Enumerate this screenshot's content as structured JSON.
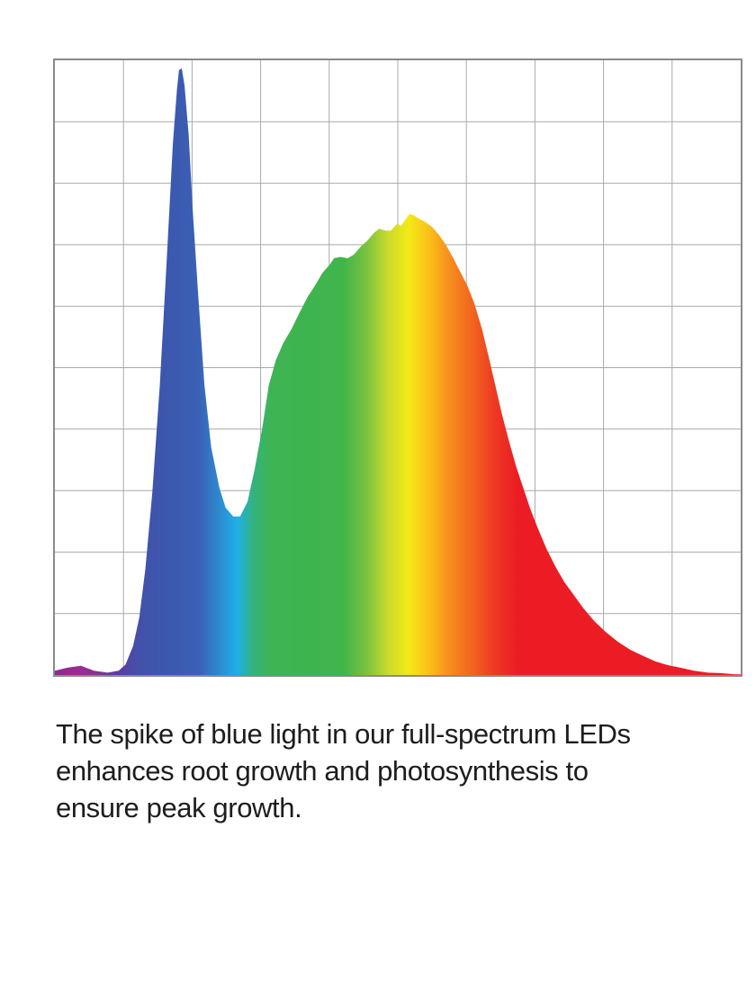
{
  "chart": {
    "border_color": "#8a8a8a",
    "grid_color": "#a9a9a9",
    "background": "#ffffff"
  },
  "chart_data": {
    "type": "area",
    "title": "",
    "xlabel": "",
    "ylabel": "",
    "legend": "none",
    "grid": "on",
    "grid_columns": 10,
    "grid_rows": 10,
    "x_range_norm": [
      0,
      1
    ],
    "y_range_norm": [
      0,
      1
    ],
    "description": "Full-spectrum LED relative intensity across the visible spectrum (violet to red), with a sharp blue spike and a broad green-to-red hump",
    "series": [
      {
        "name": "full-spectrum-led-intensity",
        "points": [
          [
            0.0,
            0.007
          ],
          [
            0.018,
            0.012
          ],
          [
            0.038,
            0.015
          ],
          [
            0.057,
            0.007
          ],
          [
            0.077,
            0.004
          ],
          [
            0.093,
            0.007
          ],
          [
            0.103,
            0.017
          ],
          [
            0.114,
            0.047
          ],
          [
            0.123,
            0.093
          ],
          [
            0.132,
            0.173
          ],
          [
            0.142,
            0.297
          ],
          [
            0.153,
            0.472
          ],
          [
            0.163,
            0.675
          ],
          [
            0.172,
            0.865
          ],
          [
            0.178,
            0.952
          ],
          [
            0.181,
            0.984
          ],
          [
            0.185,
            0.987
          ],
          [
            0.189,
            0.959
          ],
          [
            0.195,
            0.879
          ],
          [
            0.201,
            0.755
          ],
          [
            0.209,
            0.617
          ],
          [
            0.218,
            0.472
          ],
          [
            0.228,
            0.37
          ],
          [
            0.24,
            0.304
          ],
          [
            0.249,
            0.272
          ],
          [
            0.26,
            0.258
          ],
          [
            0.27,
            0.258
          ],
          [
            0.281,
            0.282
          ],
          [
            0.291,
            0.333
          ],
          [
            0.302,
            0.399
          ],
          [
            0.312,
            0.472
          ],
          [
            0.322,
            0.512
          ],
          [
            0.333,
            0.54
          ],
          [
            0.345,
            0.563
          ],
          [
            0.356,
            0.588
          ],
          [
            0.368,
            0.614
          ],
          [
            0.38,
            0.635
          ],
          [
            0.39,
            0.654
          ],
          [
            0.401,
            0.668
          ],
          [
            0.407,
            0.678
          ],
          [
            0.416,
            0.68
          ],
          [
            0.427,
            0.678
          ],
          [
            0.436,
            0.684
          ],
          [
            0.446,
            0.697
          ],
          [
            0.456,
            0.707
          ],
          [
            0.465,
            0.719
          ],
          [
            0.473,
            0.726
          ],
          [
            0.482,
            0.723
          ],
          [
            0.49,
            0.723
          ],
          [
            0.499,
            0.734
          ],
          [
            0.505,
            0.731
          ],
          [
            0.512,
            0.742
          ],
          [
            0.517,
            0.75
          ],
          [
            0.523,
            0.748
          ],
          [
            0.531,
            0.742
          ],
          [
            0.54,
            0.737
          ],
          [
            0.55,
            0.729
          ],
          [
            0.56,
            0.716
          ],
          [
            0.57,
            0.7
          ],
          [
            0.581,
            0.678
          ],
          [
            0.591,
            0.656
          ],
          [
            0.602,
            0.632
          ],
          [
            0.612,
            0.603
          ],
          [
            0.623,
            0.562
          ],
          [
            0.633,
            0.515
          ],
          [
            0.642,
            0.472
          ],
          [
            0.651,
            0.428
          ],
          [
            0.662,
            0.381
          ],
          [
            0.672,
            0.341
          ],
          [
            0.683,
            0.304
          ],
          [
            0.693,
            0.271
          ],
          [
            0.704,
            0.239
          ],
          [
            0.717,
            0.205
          ],
          [
            0.73,
            0.176
          ],
          [
            0.743,
            0.151
          ],
          [
            0.756,
            0.131
          ],
          [
            0.771,
            0.108
          ],
          [
            0.787,
            0.087
          ],
          [
            0.803,
            0.07
          ],
          [
            0.821,
            0.054
          ],
          [
            0.839,
            0.041
          ],
          [
            0.858,
            0.031
          ],
          [
            0.876,
            0.022
          ],
          [
            0.894,
            0.016
          ],
          [
            0.912,
            0.012
          ],
          [
            0.932,
            0.007
          ],
          [
            0.952,
            0.004
          ],
          [
            0.971,
            0.003
          ],
          [
            0.991,
            0.001
          ],
          [
            1.0,
            0.001
          ]
        ]
      }
    ],
    "gradient_stops": [
      [
        0.0,
        "#8E278F"
      ],
      [
        0.03,
        "#9C2A94"
      ],
      [
        0.06,
        "#8A3098"
      ],
      [
        0.09,
        "#5C3BA0"
      ],
      [
        0.12,
        "#4450A9"
      ],
      [
        0.16,
        "#3C57AE"
      ],
      [
        0.21,
        "#3A60B5"
      ],
      [
        0.24,
        "#2C8BCF"
      ],
      [
        0.265,
        "#1FAEE9"
      ],
      [
        0.29,
        "#34B37B"
      ],
      [
        0.315,
        "#3EB454"
      ],
      [
        0.42,
        "#3FB54A"
      ],
      [
        0.455,
        "#7CC23F"
      ],
      [
        0.485,
        "#C8DA2C"
      ],
      [
        0.515,
        "#F3EA16"
      ],
      [
        0.545,
        "#FBC118"
      ],
      [
        0.575,
        "#F68E1E"
      ],
      [
        0.61,
        "#F2631F"
      ],
      [
        0.64,
        "#EE3A23"
      ],
      [
        0.675,
        "#EC1C24"
      ],
      [
        1.0,
        "#EC1C24"
      ]
    ]
  },
  "caption": {
    "text": "The spike of blue light in our full-spectrum LEDs enhances root growth and photosynthesis to ensure peak growth.",
    "lines": [
      "The spike of blue light in our full-spectrum LEDs",
      "enhances root growth and photosynthesis to",
      "ensure peak growth."
    ],
    "color": "#1d1d1f"
  }
}
